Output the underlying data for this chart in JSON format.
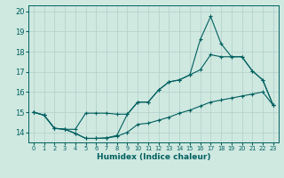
{
  "xlabel": "Humidex (Indice chaleur)",
  "bg_color": "#cfe8e0",
  "grid_color": "#b0d0c8",
  "line_color": "#006060",
  "xlim": [
    -0.5,
    23.5
  ],
  "ylim": [
    13.5,
    20.3
  ],
  "xticks": [
    0,
    1,
    2,
    3,
    4,
    5,
    6,
    7,
    8,
    9,
    10,
    11,
    12,
    13,
    14,
    15,
    16,
    17,
    18,
    19,
    20,
    21,
    22,
    23
  ],
  "yticks": [
    14,
    15,
    16,
    17,
    18,
    19,
    20
  ],
  "line_bottom_x": [
    0,
    1,
    2,
    3,
    4,
    5,
    6,
    7,
    8,
    9,
    10,
    11,
    12,
    13,
    14,
    15,
    16,
    17,
    18,
    19,
    20,
    21,
    22,
    23
  ],
  "line_bottom_y": [
    15.0,
    14.85,
    14.2,
    14.15,
    13.95,
    13.7,
    13.7,
    13.72,
    13.8,
    14.0,
    14.4,
    14.45,
    14.6,
    14.75,
    14.95,
    15.1,
    15.3,
    15.5,
    15.6,
    15.7,
    15.8,
    15.9,
    16.0,
    15.35
  ],
  "line_mid_x": [
    0,
    1,
    2,
    3,
    4,
    5,
    6,
    7,
    8,
    9,
    10,
    11,
    12,
    13,
    14,
    15,
    16,
    17,
    18,
    19,
    20,
    21,
    22,
    23
  ],
  "line_mid_y": [
    15.0,
    14.85,
    14.2,
    14.15,
    14.15,
    14.95,
    14.95,
    14.95,
    14.9,
    14.9,
    15.5,
    15.5,
    16.1,
    16.5,
    16.6,
    16.85,
    17.1,
    17.85,
    17.75,
    17.75,
    17.75,
    17.05,
    16.6,
    15.35
  ],
  "line_top_x": [
    0,
    1,
    2,
    3,
    4,
    5,
    6,
    7,
    8,
    9,
    10,
    11,
    12,
    13,
    14,
    15,
    16,
    17,
    18,
    19,
    20,
    21,
    22,
    23
  ],
  "line_top_y": [
    15.0,
    14.85,
    14.2,
    14.15,
    13.95,
    13.7,
    13.7,
    13.72,
    13.85,
    14.9,
    15.5,
    15.5,
    16.1,
    16.5,
    16.6,
    16.85,
    18.6,
    19.75,
    18.4,
    17.75,
    17.75,
    17.05,
    16.6,
    15.35
  ]
}
